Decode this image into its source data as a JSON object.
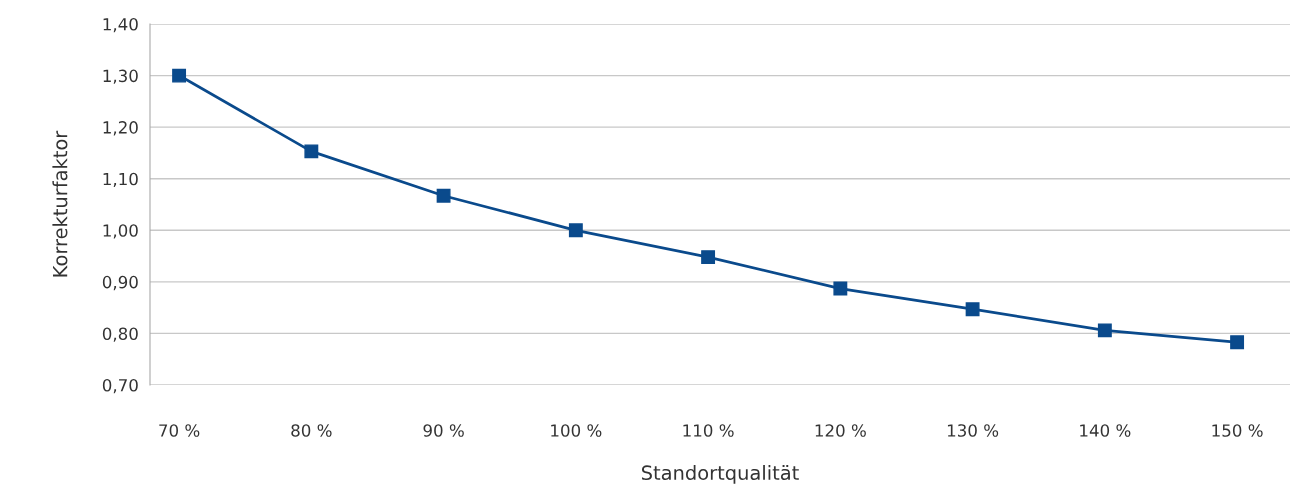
{
  "chart_data": {
    "type": "line",
    "xlabel": "Standortqualität",
    "ylabel": "Korrekturfaktor",
    "categories": [
      "70 %",
      "80 %",
      "90 %",
      "100 %",
      "110 %",
      "120 %",
      "130 %",
      "140 %",
      "150 %"
    ],
    "series": [
      {
        "color": "#0a4a8c",
        "values": [
          1.3,
          1.153,
          1.067,
          1.0,
          0.948,
          0.887,
          0.847,
          0.806,
          0.783
        ]
      }
    ],
    "ylim": [
      0.7,
      1.4
    ],
    "yticks": [
      {
        "value": 0.7,
        "label": "0,70"
      },
      {
        "value": 0.8,
        "label": "0,80"
      },
      {
        "value": 0.9,
        "label": "0,90"
      },
      {
        "value": 1.0,
        "label": "1,00"
      },
      {
        "value": 1.1,
        "label": "1,10"
      },
      {
        "value": 1.2,
        "label": "1,20"
      },
      {
        "value": 1.3,
        "label": "1,30"
      },
      {
        "value": 1.4,
        "label": "1,40"
      }
    ],
    "grid": "y",
    "marker": "square",
    "line_style": "solid",
    "legend": false
  }
}
